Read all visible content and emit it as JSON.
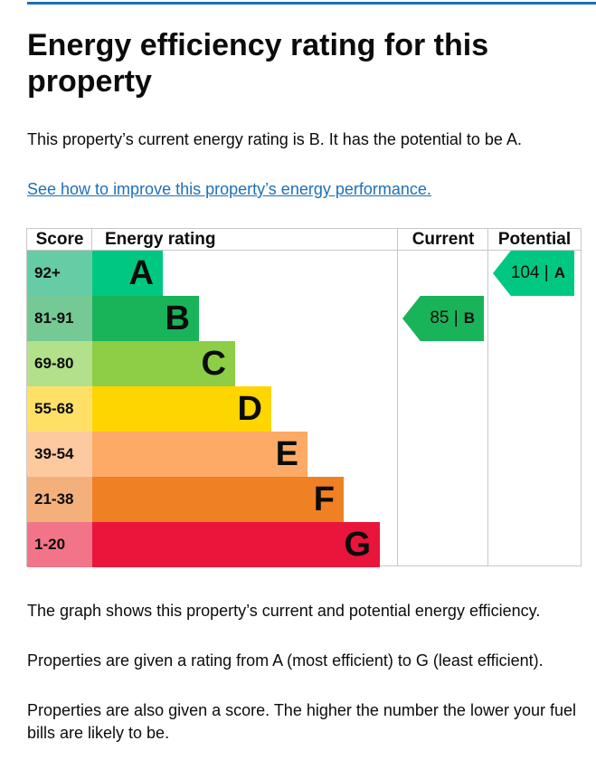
{
  "title": "Energy efficiency rating for this property",
  "intro": "This property’s current energy rating is B. It has the potential to be A.",
  "link": "See how to improve this property’s energy performance.",
  "table": {
    "headers": [
      "Score",
      "Energy rating",
      "Current",
      "Potential"
    ],
    "rows": [
      {
        "score": "92+",
        "band": "A"
      },
      {
        "score": "81-91",
        "band": "B"
      },
      {
        "score": "69-80",
        "band": "C"
      },
      {
        "score": "55-68",
        "band": "D"
      },
      {
        "score": "39-54",
        "band": "E"
      },
      {
        "score": "21-38",
        "band": "F"
      },
      {
        "score": "1-20",
        "band": "G"
      }
    ],
    "current": {
      "label": "85 |",
      "band": "B"
    },
    "potential": {
      "label": "104 |",
      "band": "A"
    }
  },
  "paragraphs": [
    "The graph shows this property’s current and potential energy efficiency.",
    "Properties are given a rating from A (most efficient) to G (least efficient).",
    "Properties are also given a score. The higher the number the lower your fuel bills are likely to be."
  ]
}
